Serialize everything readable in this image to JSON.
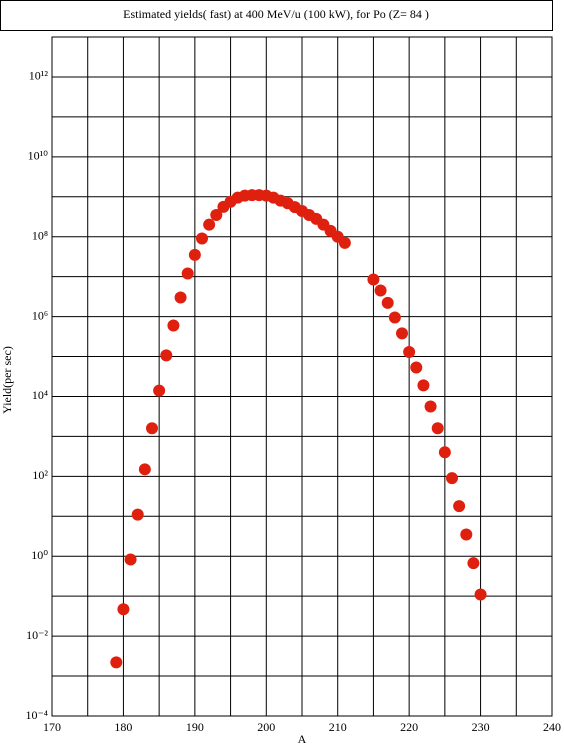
{
  "chart_data": {
    "type": "scatter",
    "title": "Estimated yields( fast) at 400 MeV/u (100 kW), for Po (Z= 84 )",
    "xlabel": "A",
    "ylabel": "Yield(per sec)",
    "log_y": true,
    "grid": true,
    "color": "#e0200f",
    "xlim": [
      170,
      240
    ],
    "xticks": [
      170,
      180,
      190,
      200,
      210,
      220,
      230,
      240
    ],
    "x_minor_ticks": [
      175,
      185,
      195,
      205,
      215,
      225,
      235
    ],
    "ylim": [
      0.0001,
      10000000000000
    ],
    "yticks": [
      {
        "value": 0.0001,
        "label": "10⁻⁴"
      },
      {
        "value": 0.01,
        "label": "10⁻²"
      },
      {
        "value": 1,
        "label": "10⁰"
      },
      {
        "value": 100,
        "label": "10²"
      },
      {
        "value": 10000,
        "label": "10⁴"
      },
      {
        "value": 1000000,
        "label": "10⁶"
      },
      {
        "value": 100000000,
        "label": "10⁸"
      },
      {
        "value": 10000000000,
        "label": "10¹⁰"
      },
      {
        "value": 1000000000000,
        "label": "10¹²"
      }
    ],
    "y_minor_ticks": [
      0.001,
      0.1,
      10,
      1000,
      100000,
      10000000,
      1000000000,
      100000000000,
      10000000000000
    ],
    "x": [
      179,
      180,
      181,
      182,
      183,
      184,
      185,
      186,
      187,
      188,
      189,
      190,
      191,
      192,
      193,
      194,
      195,
      196,
      197,
      198,
      199,
      200,
      201,
      202,
      203,
      204,
      205,
      206,
      207,
      208,
      209,
      210,
      211,
      215,
      216,
      217,
      218,
      219,
      220,
      221,
      222,
      223,
      224,
      225,
      226,
      227,
      228,
      229,
      230
    ],
    "values": [
      0.0022,
      0.047,
      0.83,
      11,
      150,
      1600,
      14000,
      107000,
      600000,
      3000000,
      12000000,
      35000000,
      90000000,
      200000000,
      350000000,
      560000000,
      750000000,
      950000000,
      1070000000,
      1100000000,
      1100000000,
      1070000000,
      950000000,
      800000000,
      690000000,
      550000000,
      440000000,
      350000000,
      280000000,
      200000000,
      140000000,
      100000000,
      70000000,
      8500000,
      4500000,
      2200000,
      950000,
      380000,
      130000,
      53000,
      19000,
      5600,
      1600,
      400,
      90,
      18,
      3.5,
      0.67,
      0.11
    ]
  }
}
